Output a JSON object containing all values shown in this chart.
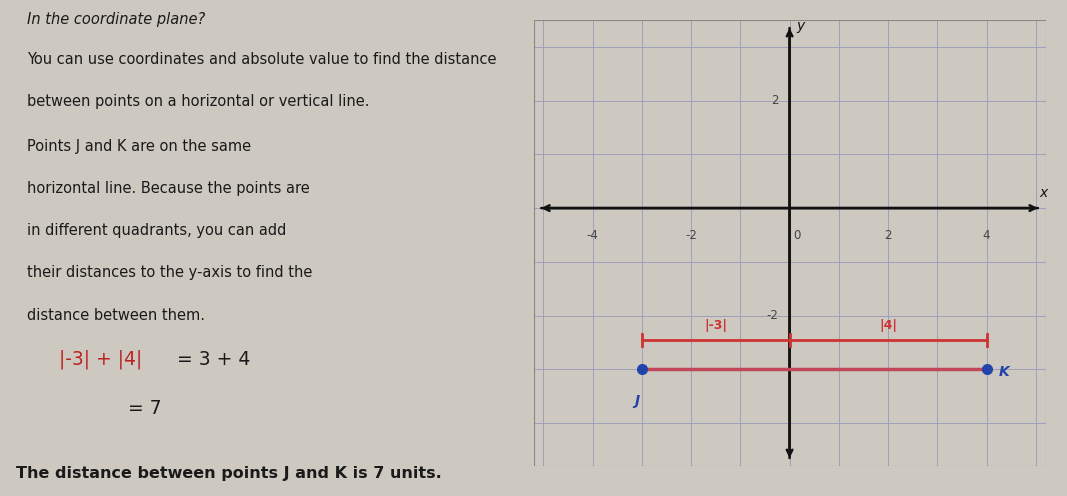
{
  "bg_color": "#cdc9c0",
  "grid_bg": "#d8e4f0",
  "title_line": "In the coordinate plane?",
  "desc_lines": [
    "You can use coordinates and absolute value to find the distance",
    "between points on a horizontal or vertical line."
  ],
  "side_lines": [
    "Points J and K are on the same",
    "horizontal line. Because the points are",
    "in different quadrants, you can add",
    "their distances to the y-axis to find the",
    "distance between them."
  ],
  "formula_red": "|-3| + |4|",
  "formula_black": " = 3 + 4",
  "formula_line2": "= 7",
  "conclusion": "The distance between points J and K is 7 units.",
  "point_J": [
    -3,
    -3
  ],
  "point_K": [
    4,
    -3
  ],
  "x_range": [
    -5.2,
    5.2
  ],
  "y_range": [
    -4.8,
    3.5
  ],
  "x_ticks": [
    -4,
    -2,
    0,
    2,
    4
  ],
  "y_ticks": [
    -2,
    2
  ],
  "point_color": "#2244aa",
  "segment_color": "#c04858",
  "bracket_color": "#cc3333",
  "axis_color": "#111111",
  "tick_color": "#444444",
  "grid_color": "#9999bb",
  "text_dark": "#1a1a1a",
  "text_red": "#bb2222",
  "grid_lw": 0.6,
  "axis_lw": 1.8
}
